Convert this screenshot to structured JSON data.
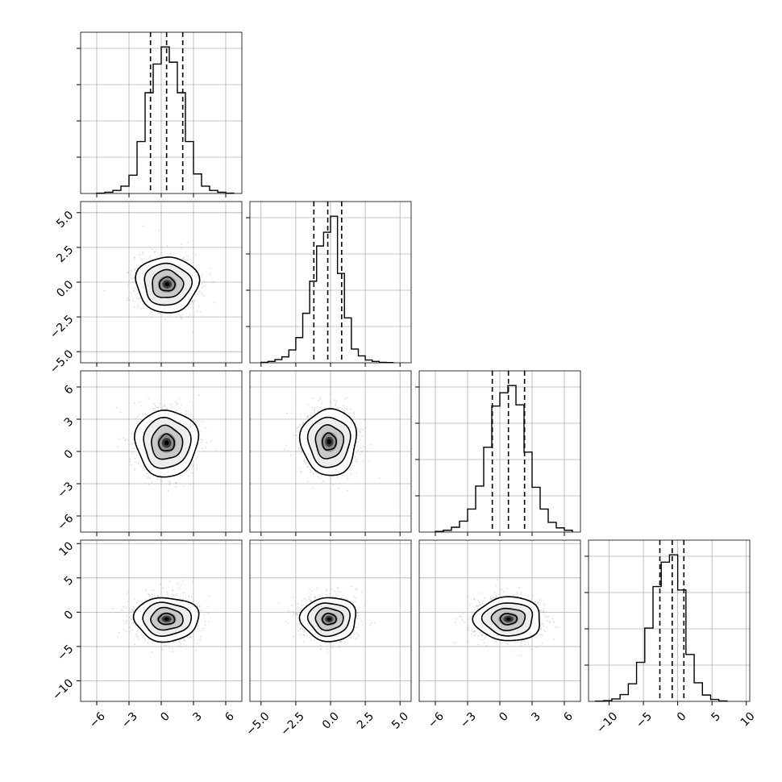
{
  "chart_data": {
    "type": "corner",
    "title": "",
    "grid": true,
    "parameters": [
      {
        "index": 0,
        "label": "",
        "range": [
          -7.5,
          7.5
        ],
        "ticks": [
          -6,
          -3,
          0,
          3,
          6
        ],
        "tick_labels": [
          "−6",
          "−3",
          "0",
          "3",
          "6"
        ],
        "quantiles": {
          "q16": -1.0,
          "q50": 0.5,
          "q84": 2.0
        }
      },
      {
        "index": 1,
        "label": "",
        "range": [
          -5.8,
          5.8
        ],
        "ticks": [
          -5.0,
          -2.5,
          0.0,
          2.5,
          5.0
        ],
        "tick_labels": [
          "−5.0",
          "−2.5",
          "0.0",
          "2.5",
          "5.0"
        ],
        "quantiles": {
          "q16": -1.2,
          "q50": -0.2,
          "q84": 0.8
        }
      },
      {
        "index": 2,
        "label": "",
        "range": [
          -7.5,
          7.5
        ],
        "ticks": [
          -6,
          -3,
          0,
          3,
          6
        ],
        "tick_labels": [
          "−6",
          "−3",
          "0",
          "3",
          "6"
        ],
        "quantiles": {
          "q16": -0.7,
          "q50": 0.8,
          "q84": 2.3
        }
      },
      {
        "index": 3,
        "label": "",
        "range": [
          -13,
          10.5
        ],
        "ticks": [
          -10,
          -5,
          0,
          5,
          10
        ],
        "tick_labels": [
          "−10",
          "−5",
          "0",
          "5",
          "10"
        ],
        "quantiles": {
          "q16": -2.6,
          "q50": -0.8,
          "q84": 0.9
        }
      }
    ],
    "histograms": [
      {
        "param": 0,
        "bin_width": 0.75,
        "bin_edges": [
          -6,
          -5.25,
          -4.5,
          -3.75,
          -3,
          -2.25,
          -1.5,
          -0.75,
          0,
          0.75,
          1.5,
          2.25,
          3,
          3.75,
          4.5,
          5.25,
          6,
          6.75
        ],
        "counts": [
          0.5,
          2,
          5,
          12,
          30,
          85,
          165,
          212,
          240,
          215,
          165,
          85,
          32,
          12,
          5,
          2,
          0.5
        ]
      },
      {
        "param": 1,
        "bin_width": 0.5,
        "bin_edges": [
          -5,
          -4.5,
          -4,
          -3.5,
          -3,
          -2.5,
          -2,
          -1.5,
          -1,
          -0.5,
          0,
          0.5,
          1,
          1.5,
          2,
          2.5,
          3,
          3.5,
          4,
          4.5
        ],
        "counts": [
          1,
          3,
          7,
          13,
          28,
          55,
          108,
          178,
          255,
          285,
          320,
          195,
          98,
          30,
          15,
          6,
          3,
          1,
          0.5
        ]
      },
      {
        "param": 2,
        "bin_width": 0.75,
        "bin_edges": [
          -6,
          -5.25,
          -4.5,
          -3.75,
          -3,
          -2.25,
          -1.5,
          -0.75,
          0,
          0.75,
          1.5,
          2.25,
          3,
          3.75,
          4.5,
          5.25,
          6,
          6.75
        ],
        "counts": [
          1,
          3,
          8,
          18,
          38,
          76,
          140,
          208,
          230,
          242,
          210,
          132,
          74,
          38,
          16,
          7,
          3
        ]
      },
      {
        "param": 3,
        "bin_width": 1.2,
        "bin_edges": [
          -12,
          -10.8,
          -9.6,
          -8.4,
          -7.2,
          -6,
          -4.8,
          -3.6,
          -2.4,
          -1.2,
          0,
          1.2,
          2.4,
          3.6,
          4.8,
          6,
          7.2
        ],
        "counts": [
          0.5,
          1.5,
          5,
          14,
          36,
          80,
          150,
          235,
          285,
          300,
          228,
          96,
          38,
          13,
          4,
          1
        ]
      }
    ],
    "joint_panels": [
      {
        "x_param": 0,
        "y_param": 1,
        "center": [
          0.55,
          -0.15
        ],
        "sigma": [
          1.45,
          1.0
        ],
        "rho": 0.0
      },
      {
        "x_param": 0,
        "y_param": 2,
        "center": [
          0.5,
          0.8
        ],
        "sigma": [
          1.45,
          1.55
        ],
        "rho": 0.0
      },
      {
        "x_param": 1,
        "y_param": 2,
        "center": [
          -0.1,
          0.9
        ],
        "sigma": [
          1.0,
          1.55
        ],
        "rho": 0.0
      },
      {
        "x_param": 0,
        "y_param": 3,
        "center": [
          0.5,
          -1.0
        ],
        "sigma": [
          1.5,
          1.6
        ],
        "rho": 0.0
      },
      {
        "x_param": 1,
        "y_param": 3,
        "center": [
          -0.1,
          -1.0
        ],
        "sigma": [
          1.0,
          1.6
        ],
        "rho": 0.0
      },
      {
        "x_param": 2,
        "y_param": 3,
        "center": [
          0.8,
          -1.0
        ],
        "sigma": [
          1.55,
          1.6
        ],
        "rho": 0.0
      }
    ],
    "contour_levels_sigma": [
      0.5,
      1.0,
      1.5,
      2.0
    ]
  }
}
